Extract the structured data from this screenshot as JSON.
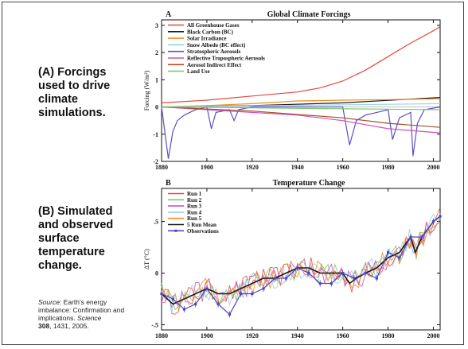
{
  "labels": {
    "a_text": "(A) Forcings used to drive climate simulations.",
    "b_text": "(B) Simulated and observed surface temperature change."
  },
  "source": {
    "prefix": "Source:",
    "text": " Earth's energy imbalance: Confirmation and implications.",
    "journal": "Science",
    "volume": "308",
    "pages": ", 1431, 2005."
  },
  "chart_data": [
    {
      "type": "line",
      "panel_letter": "A",
      "title": "Global Climate Forcings",
      "ylabel": "Forcing (W/m²)",
      "xlabel": "",
      "xlim": [
        1880,
        2003
      ],
      "ylim": [
        -2,
        3.2
      ],
      "x_ticks": [
        "1880",
        "1900",
        "1920",
        "1940",
        "1960",
        "1980",
        "2000"
      ],
      "y_ticks": [
        "-2",
        "-1",
        "0",
        "1",
        "2",
        "3"
      ],
      "legend_position": "top-left",
      "grid": false,
      "series": [
        {
          "name": "All Greenhouse Gases",
          "color": "#e8463c",
          "x": [
            1880,
            1900,
            1920,
            1940,
            1950,
            1960,
            1970,
            1980,
            1990,
            2000,
            2003
          ],
          "y": [
            0.15,
            0.25,
            0.4,
            0.55,
            0.7,
            0.95,
            1.35,
            1.85,
            2.35,
            2.8,
            2.95
          ]
        },
        {
          "name": "Black Carbon (BC)",
          "color": "#1a1a1a",
          "x": [
            1880,
            1920,
            1960,
            2003
          ],
          "y": [
            0.0,
            0.05,
            0.15,
            0.35
          ]
        },
        {
          "name": "Solar Irradiance",
          "color": "#f28c1e",
          "x": [
            1880,
            1900,
            1920,
            1940,
            1960,
            1980,
            2003
          ],
          "y": [
            0.0,
            0.05,
            0.12,
            0.22,
            0.25,
            0.27,
            0.3
          ]
        },
        {
          "name": "Snow Albedo (BC effect)",
          "color": "#9ad2e8",
          "x": [
            1880,
            1940,
            2003
          ],
          "y": [
            0.0,
            0.06,
            0.12
          ]
        },
        {
          "name": "Stratospheric Aerosols",
          "color": "#5b4fc8",
          "x": [
            1880,
            1883,
            1885,
            1887,
            1890,
            1895,
            1900,
            1902,
            1904,
            1910,
            1912,
            1914,
            1920,
            1940,
            1960,
            1963,
            1966,
            1970,
            1975,
            1980,
            1982,
            1985,
            1990,
            1991,
            1993,
            1996,
            2003
          ],
          "y": [
            0.0,
            -1.9,
            -0.9,
            -0.5,
            -0.3,
            -0.1,
            0.0,
            -0.8,
            -0.2,
            -0.1,
            -0.5,
            -0.1,
            0.0,
            0.0,
            0.0,
            -1.4,
            -0.5,
            -0.3,
            -0.2,
            -0.1,
            -1.2,
            -0.4,
            -0.2,
            -1.8,
            -0.6,
            -0.1,
            0.0
          ]
        },
        {
          "name": "Reflective Tropospheric Aerosols",
          "color": "#d04fc0",
          "x": [
            1880,
            1900,
            1920,
            1940,
            1960,
            1980,
            2003
          ],
          "y": [
            0.0,
            -0.1,
            -0.2,
            -0.3,
            -0.5,
            -0.8,
            -0.95
          ]
        },
        {
          "name": "Aerosol Indirect Effect",
          "color": "#a05028",
          "x": [
            1880,
            1920,
            1960,
            1980,
            2003
          ],
          "y": [
            0.0,
            -0.15,
            -0.4,
            -0.6,
            -0.75
          ]
        },
        {
          "name": "Land Use",
          "color": "#7dc86a",
          "x": [
            1880,
            1940,
            2003
          ],
          "y": [
            0.0,
            -0.05,
            -0.1
          ]
        }
      ]
    },
    {
      "type": "line",
      "panel_letter": "B",
      "title": "Temperature Change",
      "ylabel": "ΔT (°C)",
      "xlabel": "",
      "xlim": [
        1880,
        2003
      ],
      "ylim": [
        -0.55,
        0.82
      ],
      "x_ticks": [
        "1880",
        "1900",
        "1920",
        "1940",
        "1960",
        "1980",
        "2000"
      ],
      "y_ticks": [
        "-.5",
        "0",
        ".5"
      ],
      "legend_position": "top-left",
      "grid": false,
      "series": [
        {
          "name": "Run 1",
          "color": "#e8463c"
        },
        {
          "name": "Run 2",
          "color": "#7dc86a"
        },
        {
          "name": "Run 3",
          "color": "#d04fc0"
        },
        {
          "name": "Run 4",
          "color": "#9ad2e8"
        },
        {
          "name": "Run 5",
          "color": "#f28c1e"
        },
        {
          "name": "5 Run Mean",
          "color": "#1a1a1a"
        },
        {
          "name": "Observations",
          "color": "#4a46c8",
          "x": [
            1880,
            1885,
            1890,
            1895,
            1900,
            1905,
            1910,
            1915,
            1920,
            1925,
            1930,
            1935,
            1940,
            1945,
            1950,
            1955,
            1960,
            1965,
            1970,
            1975,
            1980,
            1985,
            1990,
            1995,
            2000,
            2003
          ],
          "y": [
            -0.2,
            -0.25,
            -0.35,
            -0.3,
            -0.15,
            -0.3,
            -0.4,
            -0.2,
            -0.2,
            -0.15,
            -0.05,
            -0.05,
            0.05,
            0.0,
            -0.1,
            -0.1,
            0.0,
            -0.05,
            0.0,
            -0.05,
            0.2,
            0.15,
            0.35,
            0.35,
            0.5,
            0.55
          ]
        }
      ],
      "mean_series": {
        "x": [
          1880,
          1885,
          1890,
          1895,
          1900,
          1905,
          1910,
          1915,
          1920,
          1925,
          1930,
          1935,
          1940,
          1945,
          1950,
          1955,
          1960,
          1963,
          1966,
          1970,
          1975,
          1980,
          1985,
          1990,
          1992,
          1995,
          2000,
          2003
        ],
        "y": [
          -0.2,
          -0.3,
          -0.25,
          -0.2,
          -0.15,
          -0.2,
          -0.2,
          -0.15,
          -0.1,
          -0.05,
          -0.05,
          0.0,
          0.05,
          0.05,
          0.0,
          0.0,
          0.0,
          -0.1,
          -0.05,
          0.0,
          0.05,
          0.15,
          0.2,
          0.35,
          0.2,
          0.35,
          0.5,
          0.55
        ]
      }
    }
  ]
}
